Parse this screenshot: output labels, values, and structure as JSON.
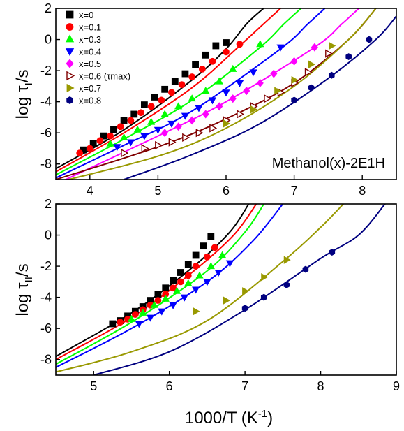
{
  "chart_data": [
    {
      "type": "scatter",
      "panel": "top",
      "ylabel": "log τI/s",
      "annotation": "Methanol(x)-2E1H",
      "xlim": [
        3.5,
        8.5
      ],
      "ylim": [
        -9,
        2
      ],
      "x_ticks": [
        4,
        5,
        6,
        7,
        8
      ],
      "y_ticks": [
        2,
        0,
        -2,
        -4,
        -6,
        -8
      ],
      "legend_position": "top-left",
      "grid": false,
      "series": [
        {
          "name": "x=0",
          "marker": "square",
          "color": "#000000",
          "x": [
            3.9,
            4.05,
            4.2,
            4.35,
            4.5,
            4.65,
            4.8,
            4.95,
            5.1,
            5.25,
            5.4,
            5.55,
            5.7,
            5.85,
            6.0
          ],
          "y": [
            -7.1,
            -6.7,
            -6.2,
            -5.8,
            -5.2,
            -4.8,
            -4.2,
            -3.7,
            -3.2,
            -2.7,
            -2.2,
            -1.6,
            -1.0,
            -0.4,
            -0.2
          ],
          "fit": [
            [
              3.5,
              -8.3
            ],
            [
              4.5,
              -5.8
            ],
            [
              5.5,
              -2.6
            ],
            [
              6.0,
              -0.6
            ],
            [
              6.3,
              1.0
            ],
            [
              6.55,
              2.0
            ]
          ]
        },
        {
          "name": "x=0.1",
          "marker": "circle",
          "color": "#ff0000",
          "x": [
            3.85,
            4.0,
            4.15,
            4.3,
            4.45,
            4.6,
            4.75,
            4.9,
            5.05,
            5.2,
            5.35,
            5.5,
            5.65,
            5.8,
            6.0,
            6.2
          ],
          "y": [
            -7.3,
            -7.0,
            -6.5,
            -6.2,
            -5.6,
            -5.2,
            -4.7,
            -4.3,
            -3.9,
            -3.4,
            -2.9,
            -2.4,
            -1.9,
            -1.4,
            -0.8,
            -0.3
          ],
          "fit": [
            [
              3.5,
              -8.5
            ],
            [
              4.5,
              -6.0
            ],
            [
              5.5,
              -3.1
            ],
            [
              6.2,
              -0.4
            ],
            [
              6.55,
              1.0
            ],
            [
              6.8,
              2.0
            ]
          ]
        },
        {
          "name": "x=0.3",
          "marker": "triangle-up",
          "color": "#00ff00",
          "x": [
            4.3,
            4.5,
            4.7,
            4.9,
            5.1,
            5.3,
            5.5,
            5.7,
            5.9,
            6.1,
            6.5
          ],
          "y": [
            -6.7,
            -6.3,
            -5.8,
            -5.3,
            -4.8,
            -4.3,
            -3.8,
            -3.3,
            -2.7,
            -1.9,
            -0.3
          ],
          "fit": [
            [
              3.5,
              -8.7
            ],
            [
              4.5,
              -6.4
            ],
            [
              5.5,
              -3.9
            ],
            [
              6.5,
              -0.5
            ],
            [
              6.85,
              1.0
            ],
            [
              7.1,
              2.0
            ]
          ]
        },
        {
          "name": "x=0.4",
          "marker": "triangle-down",
          "color": "#0000ff",
          "x": [
            4.4,
            4.6,
            4.8,
            5.0,
            5.2,
            5.4,
            5.6,
            5.8,
            6.0,
            6.2,
            6.4,
            6.8
          ],
          "y": [
            -6.9,
            -6.6,
            -6.2,
            -5.8,
            -5.4,
            -4.9,
            -4.4,
            -3.9,
            -3.4,
            -2.8,
            -2.1,
            -0.5
          ],
          "fit": [
            [
              3.5,
              -8.9
            ],
            [
              4.5,
              -6.8
            ],
            [
              5.5,
              -4.6
            ],
            [
              6.8,
              -0.6
            ],
            [
              7.2,
              1.0
            ],
            [
              7.45,
              2.0
            ]
          ]
        },
        {
          "name": "x=0.5",
          "marker": "diamond",
          "color": "#ff00ff",
          "x": [
            5.1,
            5.3,
            5.5,
            5.7,
            5.9,
            6.1,
            6.3,
            6.5,
            6.7,
            7.0,
            7.3
          ],
          "y": [
            -6.0,
            -5.6,
            -5.2,
            -4.8,
            -4.3,
            -3.8,
            -3.3,
            -2.8,
            -2.2,
            -1.4,
            -0.5
          ],
          "fit": [
            [
              3.5,
              -9.3
            ],
            [
              5.0,
              -6.2
            ],
            [
              6.0,
              -4.0
            ],
            [
              7.3,
              -0.5
            ],
            [
              7.7,
              1.0
            ],
            [
              7.95,
              2.0
            ]
          ]
        },
        {
          "name": "x=0.6 (τmax)",
          "marker": "triangle-right-open",
          "color": "#800000",
          "x": [
            4.5,
            4.8,
            5.0,
            5.2,
            5.4,
            5.6,
            5.8,
            6.0,
            6.2,
            6.4,
            6.6,
            6.8,
            7.0,
            7.2,
            7.5
          ],
          "y": [
            -7.3,
            -7.0,
            -6.8,
            -6.6,
            -6.3,
            -6.0,
            -5.7,
            -5.2,
            -4.8,
            -4.3,
            -3.8,
            -3.4,
            -2.8,
            -2.1,
            -0.9
          ],
          "fit": [
            [
              3.5,
              -9.0
            ],
            [
              5.0,
              -6.9
            ],
            [
              6.0,
              -5.1
            ],
            [
              7.0,
              -2.8
            ],
            [
              7.8,
              0.0
            ],
            [
              8.2,
              2.0
            ]
          ]
        },
        {
          "name": "x=0.7",
          "marker": "triangle-right",
          "color": "#999900",
          "x": [
            6.0,
            6.4,
            6.75,
            7.0,
            7.25,
            7.55
          ],
          "y": [
            -5.4,
            -4.5,
            -3.3,
            -2.6,
            -1.6,
            -0.4
          ],
          "fit": [
            [
              3.5,
              -9.2
            ],
            [
              5.0,
              -7.5
            ],
            [
              6.0,
              -5.7
            ],
            [
              7.0,
              -3.0
            ],
            [
              7.8,
              0.0
            ],
            [
              8.2,
              2.0
            ]
          ]
        },
        {
          "name": "x=0.8",
          "marker": "hexagon",
          "color": "#000080",
          "x": [
            7.0,
            7.25,
            7.55,
            7.8,
            8.1
          ],
          "y": [
            -3.9,
            -3.1,
            -2.3,
            -1.1,
            0.0
          ],
          "fit": [
            [
              4.5,
              -9.0
            ],
            [
              5.5,
              -7.4
            ],
            [
              6.5,
              -5.4
            ],
            [
              7.5,
              -2.5
            ],
            [
              8.2,
              0.0
            ],
            [
              8.5,
              1.5
            ]
          ]
        }
      ]
    },
    {
      "type": "scatter",
      "panel": "bottom",
      "ylabel": "log τII/s",
      "xlabel": "1000/T (K-1)",
      "xlim": [
        4.5,
        9
      ],
      "ylim": [
        -9,
        2
      ],
      "x_ticks": [
        5,
        6,
        7,
        8,
        9
      ],
      "y_ticks": [
        2,
        0,
        -2,
        -4,
        -6,
        -8
      ],
      "grid": false,
      "series": [
        {
          "name": "x=0",
          "marker": "square",
          "color": "#000000",
          "x": [
            5.25,
            5.35,
            5.45,
            5.55,
            5.65,
            5.75,
            5.85,
            5.95,
            6.05,
            6.15,
            6.25,
            6.35,
            6.45,
            6.55
          ],
          "y": [
            -5.7,
            -5.5,
            -5.2,
            -4.9,
            -4.6,
            -4.2,
            -3.8,
            -3.4,
            -2.9,
            -2.4,
            -1.9,
            -1.3,
            -0.7,
            -0.1
          ],
          "fit": [
            [
              4.5,
              -7.8
            ],
            [
              5.5,
              -5.0
            ],
            [
              6.3,
              -2.1
            ],
            [
              6.8,
              0.2
            ],
            [
              7.05,
              2.0
            ]
          ]
        },
        {
          "name": "x=0.1",
          "marker": "circle",
          "color": "#ff0000",
          "x": [
            5.35,
            5.45,
            5.55,
            5.65,
            5.75,
            5.85,
            5.95,
            6.05,
            6.15,
            6.25,
            6.35,
            6.5,
            6.6
          ],
          "y": [
            -5.6,
            -5.4,
            -5.1,
            -4.8,
            -4.5,
            -4.2,
            -3.8,
            -3.4,
            -3.0,
            -2.6,
            -2.0,
            -1.4,
            -0.8
          ],
          "fit": [
            [
              4.5,
              -8.0
            ],
            [
              5.5,
              -5.3
            ],
            [
              6.3,
              -2.4
            ],
            [
              6.85,
              0.0
            ],
            [
              7.15,
              2.0
            ]
          ]
        },
        {
          "name": "x=0.3",
          "marker": "triangle-up",
          "color": "#00ff00",
          "x": [
            5.5,
            5.65,
            5.8,
            5.95,
            6.1,
            6.25,
            6.4,
            6.55,
            6.7
          ],
          "y": [
            -5.4,
            -5.0,
            -4.5,
            -4.1,
            -3.6,
            -3.1,
            -2.6,
            -2.0,
            -1.3
          ],
          "fit": [
            [
              4.5,
              -8.3
            ],
            [
              5.5,
              -5.6
            ],
            [
              6.5,
              -2.3
            ],
            [
              7.0,
              0.2
            ],
            [
              7.25,
              2.0
            ]
          ]
        },
        {
          "name": "x=0.4",
          "marker": "triangle-down",
          "color": "#0000ff",
          "x": [
            5.6,
            5.75,
            5.9,
            6.05,
            6.2,
            6.35,
            6.5,
            6.65,
            6.8
          ],
          "y": [
            -5.7,
            -5.3,
            -4.9,
            -4.5,
            -4.0,
            -3.5,
            -3.0,
            -2.4,
            -1.8
          ],
          "fit": [
            [
              4.5,
              -8.5
            ],
            [
              5.5,
              -6.0
            ],
            [
              6.5,
              -3.0
            ],
            [
              7.1,
              -0.4
            ],
            [
              7.5,
              2.0
            ]
          ]
        },
        {
          "name": "x=0.7",
          "marker": "triangle-right",
          "color": "#999900",
          "x": [
            6.35,
            6.75,
            7.0,
            7.25,
            7.55
          ],
          "y": [
            -4.9,
            -4.2,
            -3.6,
            -2.7,
            -1.6
          ],
          "fit": [
            [
              4.5,
              -8.8
            ],
            [
              5.5,
              -7.5
            ],
            [
              6.5,
              -5.5
            ],
            [
              7.5,
              -1.7
            ],
            [
              8.0,
              0.5
            ],
            [
              8.3,
              2.0
            ]
          ]
        },
        {
          "name": "x=0.8",
          "marker": "hexagon",
          "color": "#000080",
          "x": [
            7.0,
            7.25,
            7.55,
            7.8,
            8.15
          ],
          "y": [
            -4.7,
            -4.0,
            -3.2,
            -2.2,
            -1.1
          ],
          "fit": [
            [
              5.0,
              -9.0
            ],
            [
              6.0,
              -7.5
            ],
            [
              7.0,
              -4.8
            ],
            [
              8.0,
              -1.5
            ],
            [
              8.5,
              0.0
            ],
            [
              8.85,
              2.0
            ]
          ]
        }
      ]
    }
  ]
}
